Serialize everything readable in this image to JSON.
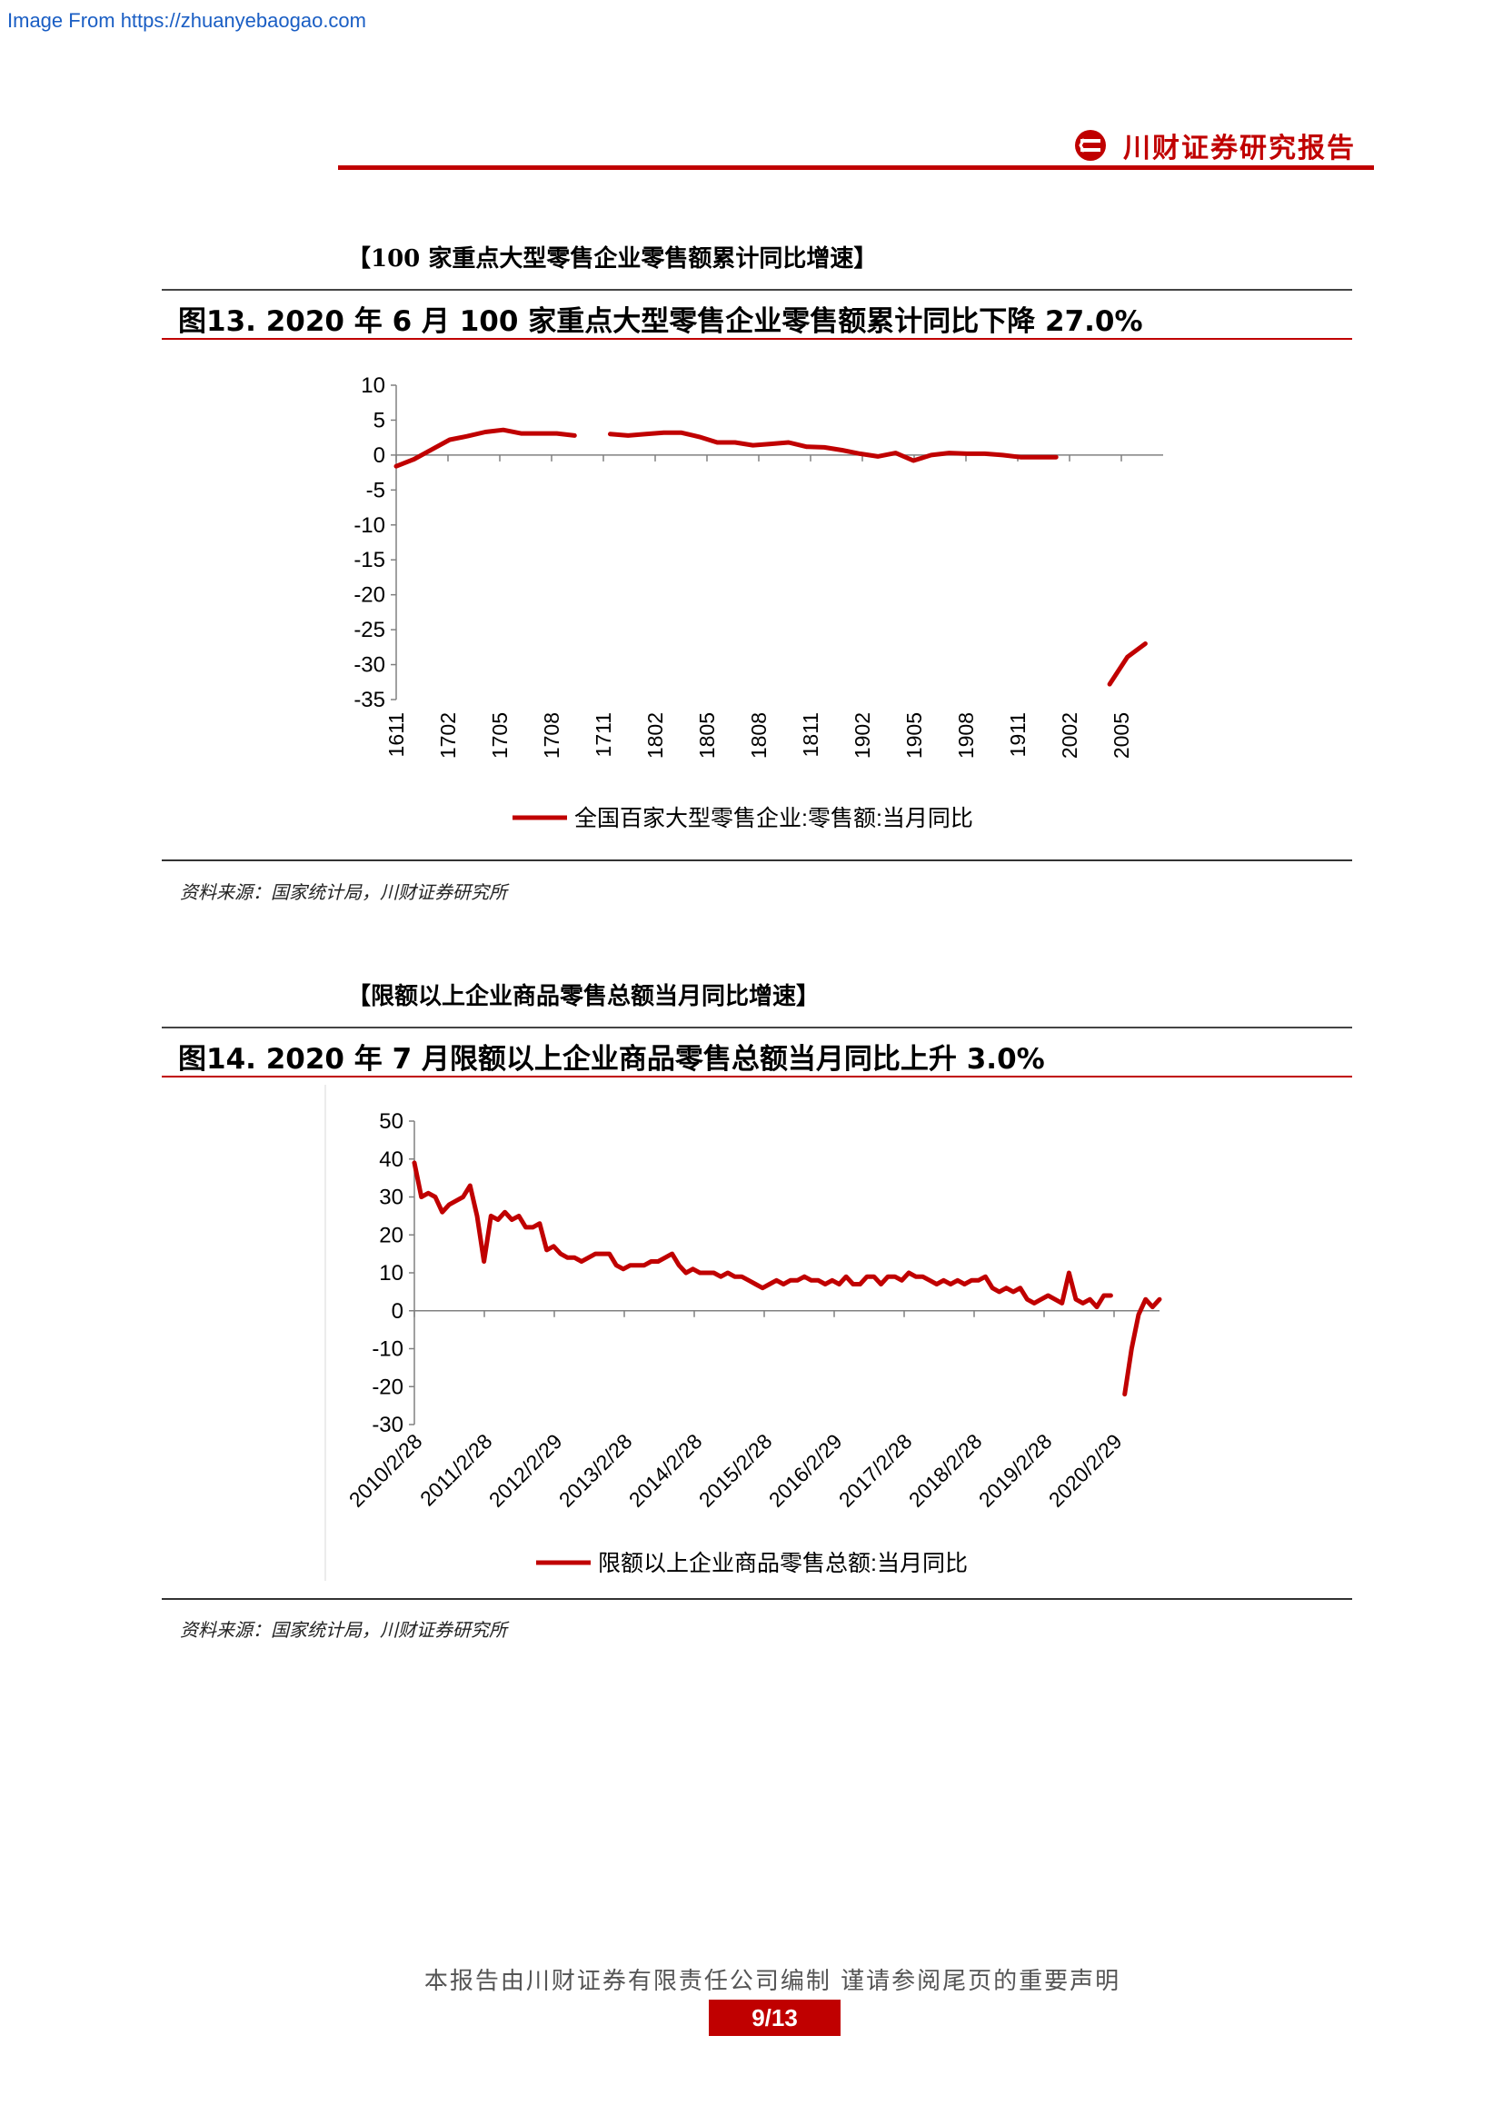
{
  "watermark": "Image From https://zhuanyebaogao.com",
  "header": {
    "brand": "川财证券研究报告",
    "brand_color": "#c00000"
  },
  "figure13": {
    "section_heading": "【100 家重点大型零售企业零售额累计同比增速】",
    "title": "图13. 2020 年 6 月 100 家重点大型零售企业零售额累计同比下降 27.0%",
    "source": "资料来源：国家统计局，川财证券研究所"
  },
  "figure14": {
    "section_heading": "【限额以上企业商品零售总额当月同比增速】",
    "title": "图14. 2020 年 7 月限额以上企业商品零售总额当月同比上升 3.0%",
    "source": "资料来源：国家统计局，川财证券研究所"
  },
  "footer": {
    "disclaimer": "本报告由川财证券有限责任公司编制 谨请参阅尾页的重要声明",
    "page": "9/13"
  },
  "chart_data": [
    {
      "type": "line",
      "ylim": [
        -35,
        10
      ],
      "yticks": [
        "10",
        "5",
        "0",
        "-5",
        "-10",
        "-15",
        "-20",
        "-25",
        "-30",
        "-35"
      ],
      "xticks": [
        "1611",
        "1702",
        "1705",
        "1708",
        "1711",
        "1802",
        "1805",
        "1808",
        "1811",
        "1902",
        "1905",
        "1908",
        "1911",
        "2002",
        "2005"
      ],
      "color": "#c00000",
      "series": [
        {
          "name": "全国百家大型零售企业:零售额:当月同比",
          "segments": [
            [
              [
                0,
                -1.6
              ],
              [
                1,
                -0.6
              ],
              [
                2,
                0.8
              ],
              [
                3,
                2.2
              ],
              [
                4,
                2.7
              ],
              [
                5,
                3.3
              ],
              [
                6,
                3.6
              ],
              [
                7,
                3.1
              ],
              [
                8,
                3.1
              ],
              [
                9,
                3.1
              ],
              [
                10,
                2.8
              ]
            ],
            [
              [
                12,
                3.0
              ],
              [
                13,
                2.8
              ],
              [
                14,
                3.0
              ],
              [
                15,
                3.2
              ],
              [
                16,
                3.2
              ],
              [
                17,
                2.6
              ],
              [
                18,
                1.8
              ],
              [
                19,
                1.8
              ],
              [
                20,
                1.4
              ],
              [
                21,
                1.6
              ],
              [
                22,
                1.8
              ],
              [
                23,
                1.2
              ],
              [
                24,
                1.1
              ],
              [
                25,
                0.7
              ],
              [
                26,
                0.2
              ],
              [
                27,
                -0.2
              ],
              [
                28,
                0.3
              ],
              [
                29,
                -0.8
              ],
              [
                30,
                0.0
              ],
              [
                31,
                0.3
              ],
              [
                32,
                0.2
              ],
              [
                33,
                0.2
              ],
              [
                34,
                0.0
              ],
              [
                35,
                -0.3
              ],
              [
                36,
                -0.3
              ],
              [
                37,
                -0.3
              ]
            ],
            [
              [
                40,
                -32.8
              ],
              [
                41,
                -28.9
              ],
              [
                42,
                -27.0
              ]
            ]
          ]
        }
      ]
    },
    {
      "type": "line",
      "ylim": [
        -30,
        50
      ],
      "yticks": [
        "50",
        "40",
        "30",
        "20",
        "10",
        "0",
        "-10",
        "-20",
        "-30"
      ],
      "xticks": [
        "2010/2/28",
        "2011/2/28",
        "2012/2/29",
        "2013/2/28",
        "2014/2/28",
        "2015/2/28",
        "2016/2/29",
        "2017/2/28",
        "2018/2/28",
        "2019/2/28",
        "2020/2/29"
      ],
      "color": "#c00000",
      "series": [
        {
          "name": "限额以上企业商品零售总额:当月同比",
          "segments": [
            [
              [
                0,
                39
              ],
              [
                1,
                30
              ],
              [
                2,
                31
              ],
              [
                3,
                30
              ],
              [
                4,
                26
              ],
              [
                5,
                28
              ],
              [
                6,
                29
              ],
              [
                7,
                30
              ],
              [
                8,
                33
              ],
              [
                9,
                25
              ],
              [
                10,
                13
              ],
              [
                11,
                25
              ],
              [
                12,
                24
              ],
              [
                13,
                26
              ],
              [
                14,
                24
              ],
              [
                15,
                25
              ],
              [
                16,
                22
              ],
              [
                17,
                22
              ],
              [
                18,
                23
              ],
              [
                19,
                16
              ],
              [
                20,
                17
              ],
              [
                21,
                15
              ],
              [
                22,
                14
              ],
              [
                23,
                14
              ],
              [
                24,
                13
              ],
              [
                25,
                14
              ],
              [
                26,
                15
              ],
              [
                27,
                15
              ],
              [
                28,
                15
              ],
              [
                29,
                12
              ],
              [
                30,
                11
              ],
              [
                31,
                12
              ],
              [
                32,
                12
              ],
              [
                33,
                12
              ],
              [
                34,
                13
              ],
              [
                35,
                13
              ],
              [
                36,
                14
              ],
              [
                37,
                15
              ],
              [
                38,
                12
              ],
              [
                39,
                10
              ],
              [
                40,
                11
              ],
              [
                41,
                10
              ],
              [
                42,
                10
              ],
              [
                43,
                10
              ],
              [
                44,
                9
              ],
              [
                45,
                10
              ],
              [
                46,
                9
              ],
              [
                47,
                9
              ],
              [
                48,
                8
              ],
              [
                49,
                7
              ],
              [
                50,
                6
              ],
              [
                51,
                7
              ],
              [
                52,
                8
              ],
              [
                53,
                7
              ],
              [
                54,
                8
              ],
              [
                55,
                8
              ],
              [
                56,
                9
              ],
              [
                57,
                8
              ],
              [
                58,
                8
              ],
              [
                59,
                7
              ],
              [
                60,
                8
              ],
              [
                61,
                7
              ],
              [
                62,
                9
              ],
              [
                63,
                7
              ],
              [
                64,
                7
              ],
              [
                65,
                9
              ],
              [
                66,
                9
              ],
              [
                67,
                7
              ],
              [
                68,
                9
              ],
              [
                69,
                9
              ],
              [
                70,
                8
              ],
              [
                71,
                10
              ],
              [
                72,
                9
              ],
              [
                73,
                9
              ],
              [
                74,
                8
              ],
              [
                75,
                7
              ],
              [
                76,
                8
              ],
              [
                77,
                7
              ],
              [
                78,
                8
              ],
              [
                79,
                7
              ],
              [
                80,
                8
              ],
              [
                81,
                8
              ],
              [
                82,
                9
              ],
              [
                83,
                6
              ],
              [
                84,
                5
              ],
              [
                85,
                6
              ],
              [
                86,
                5
              ],
              [
                87,
                6
              ],
              [
                88,
                3
              ],
              [
                89,
                2
              ],
              [
                90,
                3
              ],
              [
                91,
                4
              ],
              [
                92,
                3
              ],
              [
                93,
                2
              ],
              [
                94,
                10
              ],
              [
                95,
                3
              ],
              [
                96,
                2
              ],
              [
                97,
                3
              ],
              [
                98,
                1
              ],
              [
                99,
                4
              ],
              [
                100,
                4
              ]
            ],
            [
              [
                102,
                -22
              ],
              [
                103,
                -10
              ],
              [
                104,
                -1
              ],
              [
                105,
                3
              ],
              [
                106,
                1
              ],
              [
                107,
                3
              ]
            ]
          ]
        }
      ]
    }
  ]
}
